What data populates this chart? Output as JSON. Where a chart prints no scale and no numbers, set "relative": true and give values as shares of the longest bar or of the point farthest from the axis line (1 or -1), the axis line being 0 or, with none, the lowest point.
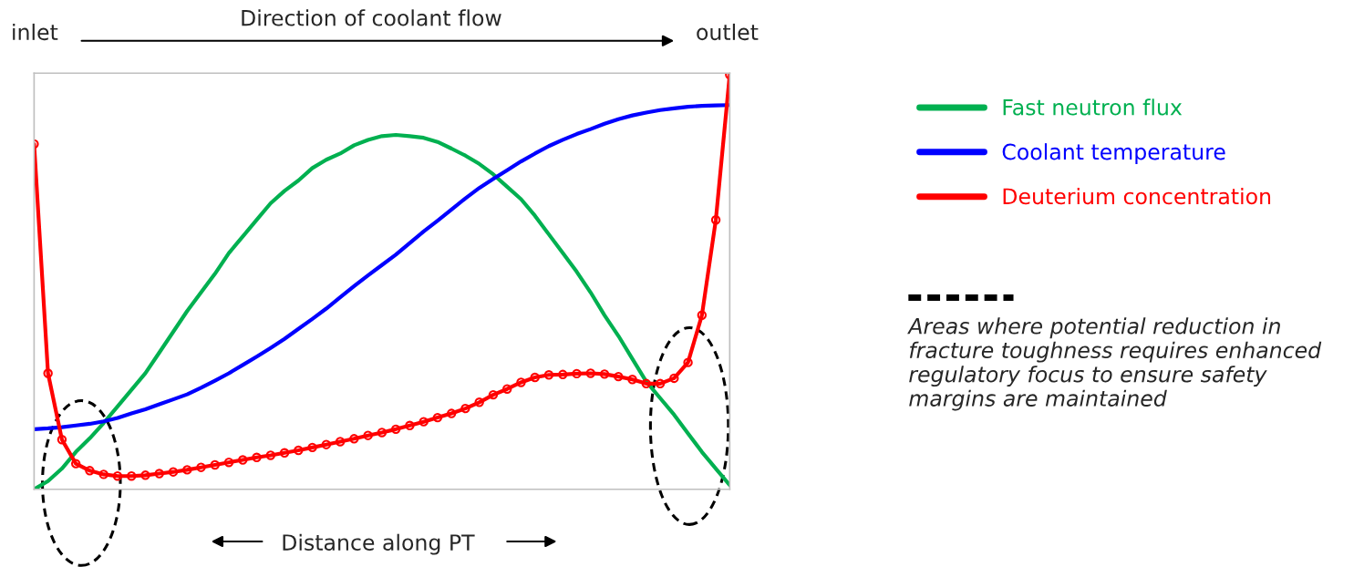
{
  "chart_data": {
    "type": "line",
    "relative": true,
    "title": "Direction of coolant flow",
    "xlabel": "Distance along PT",
    "legend": "right",
    "categories": [
      null,
      null,
      null,
      null,
      null,
      null,
      null,
      null,
      null,
      null,
      null,
      null,
      null,
      null,
      null,
      null,
      null,
      null,
      null,
      null,
      null,
      null,
      null,
      null,
      null,
      null,
      null,
      null,
      null,
      null,
      null,
      null,
      null,
      null,
      null,
      null,
      null,
      null,
      null,
      null,
      null,
      null,
      null,
      null,
      null,
      null,
      null,
      null,
      null,
      null,
      null
    ],
    "annotations": [
      "inlet",
      "outlet",
      "Areas where potential reduction in fracture toughness requires enhanced regulatory focus to ensure safety margins are maintained"
    ],
    "series": [
      {
        "name": "Fast neutron flux",
        "color": "#00b050",
        "marker": "none",
        "values": [
          0,
          0.02,
          0.05,
          0.09,
          0.123,
          0.16,
          0.2,
          0.24,
          0.28,
          0.33,
          0.38,
          0.43,
          0.475,
          0.52,
          0.57,
          0.61,
          0.65,
          0.69,
          0.72,
          0.745,
          0.775,
          0.795,
          0.81,
          0.83,
          0.843,
          0.852,
          0.855,
          0.852,
          0.848,
          0.838,
          0.822,
          0.805,
          0.785,
          0.76,
          0.73,
          0.7,
          0.66,
          0.615,
          0.57,
          0.525,
          0.475,
          0.42,
          0.37,
          0.315,
          0.26,
          0.22,
          0.18,
          0.135,
          0.09,
          0.05,
          0.01
        ]
      },
      {
        "name": "Coolant temperature",
        "color": "#0000ff",
        "marker": "none",
        "values": [
          0.145,
          0.147,
          0.15,
          0.154,
          0.158,
          0.164,
          0.172,
          0.183,
          0.193,
          0.205,
          0.217,
          0.229,
          0.245,
          0.262,
          0.28,
          0.3,
          0.32,
          0.341,
          0.363,
          0.387,
          0.411,
          0.436,
          0.463,
          0.49,
          0.516,
          0.541,
          0.566,
          0.594,
          0.622,
          0.648,
          0.675,
          0.702,
          0.727,
          0.749,
          0.77,
          0.791,
          0.81,
          0.828,
          0.843,
          0.857,
          0.869,
          0.882,
          0.893,
          0.902,
          0.909,
          0.915,
          0.919,
          0.923,
          0.925,
          0.926,
          0.927
        ]
      },
      {
        "name": "Deuterium concentration",
        "color": "#ff0000",
        "marker": "circle",
        "values": [
          0.833,
          0.28,
          0.12,
          0.062,
          0.045,
          0.036,
          0.032,
          0.032,
          0.034,
          0.038,
          0.042,
          0.047,
          0.053,
          0.059,
          0.065,
          0.071,
          0.077,
          0.082,
          0.088,
          0.094,
          0.101,
          0.108,
          0.115,
          0.122,
          0.13,
          0.137,
          0.145,
          0.154,
          0.163,
          0.173,
          0.183,
          0.195,
          0.21,
          0.228,
          0.242,
          0.258,
          0.27,
          0.276,
          0.277,
          0.279,
          0.28,
          0.278,
          0.272,
          0.265,
          0.255,
          0.255,
          0.268,
          0.306,
          0.42,
          0.65,
          1.0
        ]
      }
    ]
  }
}
